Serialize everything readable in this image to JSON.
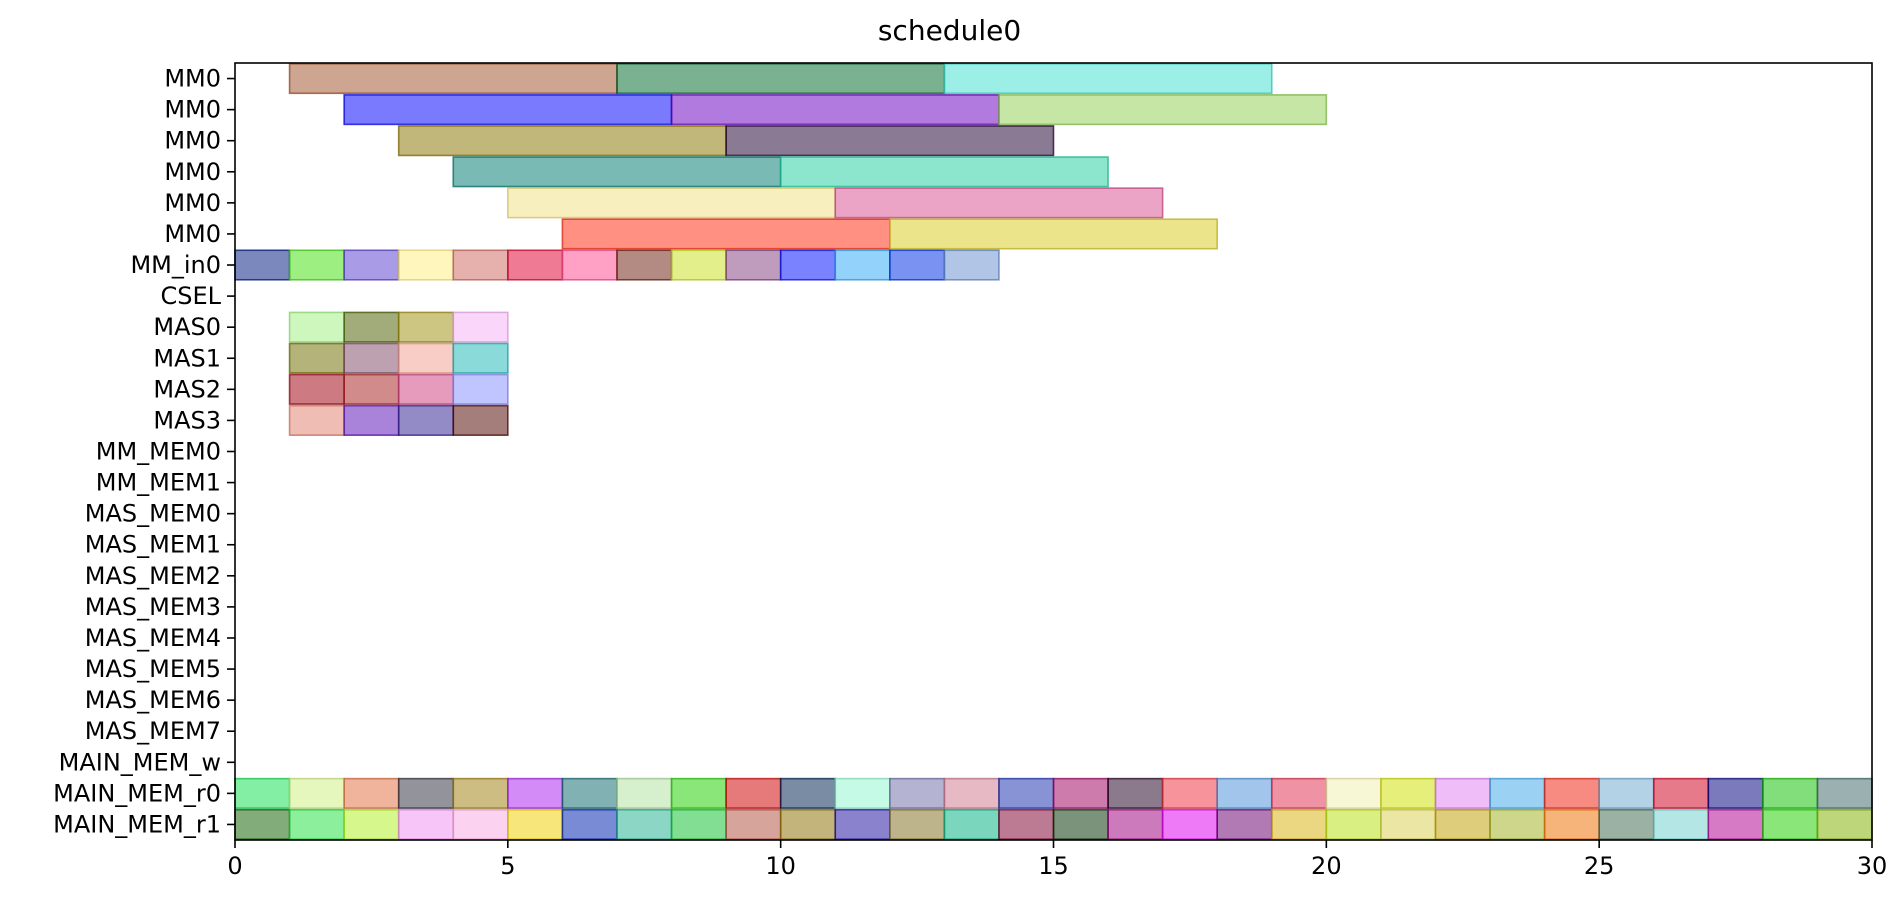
{
  "chart_data": {
    "type": "gantt",
    "title": "schedule0",
    "xlabel": "",
    "ylabel": "",
    "xlim": [
      0,
      30
    ],
    "x_ticks": [
      0,
      5,
      10,
      15,
      20,
      25,
      30
    ],
    "grid": false,
    "rows": [
      "MM0",
      "MM0",
      "MM0",
      "MM0",
      "MM0",
      "MM0",
      "MM_in0",
      "CSEL",
      "MAS0",
      "MAS1",
      "MAS2",
      "MAS3",
      "MM_MEM0",
      "MM_MEM1",
      "MAS_MEM0",
      "MAS_MEM1",
      "MAS_MEM2",
      "MAS_MEM3",
      "MAS_MEM4",
      "MAS_MEM5",
      "MAS_MEM6",
      "MAS_MEM7",
      "MAIN_MEM_w",
      "MAIN_MEM_r0",
      "MAIN_MEM_r1"
    ],
    "bars": [
      {
        "row": 0,
        "start": 1,
        "end": 7,
        "color": "#a0522d"
      },
      {
        "row": 0,
        "start": 7,
        "end": 13,
        "color": "#006a2a"
      },
      {
        "row": 0,
        "start": 13,
        "end": 19,
        "color": "#40e0d0"
      },
      {
        "row": 1,
        "start": 2,
        "end": 8,
        "color": "#0000ff"
      },
      {
        "row": 1,
        "start": 8,
        "end": 14,
        "color": "#6a00c0"
      },
      {
        "row": 1,
        "start": 14,
        "end": 20,
        "color": "#90d050"
      },
      {
        "row": 2,
        "start": 3,
        "end": 9,
        "color": "#8b7500"
      },
      {
        "row": 2,
        "start": 9,
        "end": 15,
        "color": "#200030"
      },
      {
        "row": 3,
        "start": 4,
        "end": 10,
        "color": "#007a70"
      },
      {
        "row": 3,
        "start": 10,
        "end": 16,
        "color": "#20d0a0"
      },
      {
        "row": 4,
        "start": 5,
        "end": 11,
        "color": "#f0e080"
      },
      {
        "row": 4,
        "start": 11,
        "end": 17,
        "color": "#d85090"
      },
      {
        "row": 5,
        "start": 6,
        "end": 12,
        "color": "#ff2a10"
      },
      {
        "row": 5,
        "start": 12,
        "end": 18,
        "color": "#d8cc20"
      },
      {
        "row": 6,
        "start": 0,
        "end": 1,
        "color": "#001a80"
      },
      {
        "row": 6,
        "start": 1,
        "end": 2,
        "color": "#44e010"
      },
      {
        "row": 6,
        "start": 2,
        "end": 3,
        "color": "#5a40d0"
      },
      {
        "row": 6,
        "start": 3,
        "end": 4,
        "color": "#ffee80"
      },
      {
        "row": 6,
        "start": 4,
        "end": 5,
        "color": "#d06a60"
      },
      {
        "row": 6,
        "start": 5,
        "end": 6,
        "color": "#e00030"
      },
      {
        "row": 6,
        "start": 6,
        "end": 7,
        "color": "#ff4a90"
      },
      {
        "row": 6,
        "start": 7,
        "end": 8,
        "color": "#702010"
      },
      {
        "row": 6,
        "start": 8,
        "end": 9,
        "color": "#c8e020"
      },
      {
        "row": 6,
        "start": 9,
        "end": 10,
        "color": "#844080"
      },
      {
        "row": 6,
        "start": 10,
        "end": 11,
        "color": "#0010ff"
      },
      {
        "row": 6,
        "start": 11,
        "end": 12,
        "color": "#30a8f8"
      },
      {
        "row": 6,
        "start": 12,
        "end": 13,
        "color": "#0030e8"
      },
      {
        "row": 6,
        "start": 13,
        "end": 14,
        "color": "#6a90d0"
      },
      {
        "row": 8,
        "start": 1,
        "end": 2,
        "color": "#a0f080"
      },
      {
        "row": 8,
        "start": 2,
        "end": 3,
        "color": "#4a6000"
      },
      {
        "row": 8,
        "start": 3,
        "end": 4,
        "color": "#a09010"
      },
      {
        "row": 8,
        "start": 4,
        "end": 5,
        "color": "#f8b0f8"
      },
      {
        "row": 9,
        "start": 1,
        "end": 2,
        "color": "#707000"
      },
      {
        "row": 9,
        "start": 2,
        "end": 3,
        "color": "#804a6a"
      },
      {
        "row": 9,
        "start": 3,
        "end": 4,
        "color": "#f0a090"
      },
      {
        "row": 9,
        "start": 4,
        "end": 5,
        "color": "#20b8b8"
      },
      {
        "row": 10,
        "start": 1,
        "end": 2,
        "color": "#a00010"
      },
      {
        "row": 10,
        "start": 2,
        "end": 3,
        "color": "#a82020"
      },
      {
        "row": 10,
        "start": 3,
        "end": 4,
        "color": "#d04080"
      },
      {
        "row": 10,
        "start": 4,
        "end": 5,
        "color": "#8890ff"
      },
      {
        "row": 11,
        "start": 1,
        "end": 2,
        "color": "#e08070"
      },
      {
        "row": 11,
        "start": 2,
        "end": 3,
        "color": "#5a10b8"
      },
      {
        "row": 11,
        "start": 3,
        "end": 4,
        "color": "#302090"
      },
      {
        "row": 11,
        "start": 4,
        "end": 5,
        "color": "#500800"
      },
      {
        "row": 23,
        "start": 0,
        "end": 1,
        "color": "#10e050"
      },
      {
        "row": 23,
        "start": 1,
        "end": 2,
        "color": "#d0f080"
      },
      {
        "row": 23,
        "start": 2,
        "end": 3,
        "color": "#e07040"
      },
      {
        "row": 23,
        "start": 3,
        "end": 4,
        "color": "#303040"
      },
      {
        "row": 23,
        "start": 4,
        "end": 5,
        "color": "#a08010"
      },
      {
        "row": 23,
        "start": 5,
        "end": 6,
        "color": "#a820f0"
      },
      {
        "row": 23,
        "start": 6,
        "end": 7,
        "color": "#106a70"
      },
      {
        "row": 23,
        "start": 7,
        "end": 8,
        "color": "#b0e0a0"
      },
      {
        "row": 23,
        "start": 8,
        "end": 9,
        "color": "#20d000"
      },
      {
        "row": 23,
        "start": 9,
        "end": 10,
        "color": "#d00000"
      },
      {
        "row": 23,
        "start": 10,
        "end": 11,
        "color": "#002050"
      },
      {
        "row": 23,
        "start": 11,
        "end": 12,
        "color": "#90f8d0"
      },
      {
        "row": 23,
        "start": 12,
        "end": 13,
        "color": "#7070a8"
      },
      {
        "row": 23,
        "start": 13,
        "end": 14,
        "color": "#d07890"
      },
      {
        "row": 23,
        "start": 14,
        "end": 15,
        "color": "#1a30b0"
      },
      {
        "row": 23,
        "start": 15,
        "end": 16,
        "color": "#a00060"
      },
      {
        "row": 23,
        "start": 16,
        "end": 17,
        "color": "#200020"
      },
      {
        "row": 23,
        "start": 17,
        "end": 18,
        "color": "#f03040"
      },
      {
        "row": 23,
        "start": 18,
        "end": 19,
        "color": "#4a90d8"
      },
      {
        "row": 23,
        "start": 19,
        "end": 20,
        "color": "#e03050"
      },
      {
        "row": 23,
        "start": 20,
        "end": 21,
        "color": "#f0f0b0"
      },
      {
        "row": 23,
        "start": 21,
        "end": 22,
        "color": "#d0e000"
      },
      {
        "row": 23,
        "start": 22,
        "end": 23,
        "color": "#e080f0"
      },
      {
        "row": 23,
        "start": 23,
        "end": 24,
        "color": "#40a8e8"
      },
      {
        "row": 23,
        "start": 24,
        "end": 25,
        "color": "#f02010"
      },
      {
        "row": 23,
        "start": 25,
        "end": 26,
        "color": "#70a8d0"
      },
      {
        "row": 23,
        "start": 26,
        "end": 27,
        "color": "#d00020"
      },
      {
        "row": 23,
        "start": 27,
        "end": 28,
        "color": "#000080"
      },
      {
        "row": 23,
        "start": 28,
        "end": 29,
        "color": "#10c000"
      },
      {
        "row": 23,
        "start": 29,
        "end": 30,
        "color": "#406a6a"
      },
      {
        "row": 24,
        "start": 0,
        "end": 1,
        "color": "#106000"
      },
      {
        "row": 24,
        "start": 1,
        "end": 2,
        "color": "#20e040"
      },
      {
        "row": 24,
        "start": 2,
        "end": 3,
        "color": "#b0f020"
      },
      {
        "row": 24,
        "start": 3,
        "end": 4,
        "color": "#f090f0"
      },
      {
        "row": 24,
        "start": 4,
        "end": 5,
        "color": "#f8a8e0"
      },
      {
        "row": 24,
        "start": 5,
        "end": 6,
        "color": "#f0d000"
      },
      {
        "row": 24,
        "start": 6,
        "end": 7,
        "color": "#0020b0"
      },
      {
        "row": 24,
        "start": 7,
        "end": 8,
        "color": "#20b090"
      },
      {
        "row": 24,
        "start": 8,
        "end": 9,
        "color": "#10c030"
      },
      {
        "row": 24,
        "start": 9,
        "end": 10,
        "color": "#b05040"
      },
      {
        "row": 24,
        "start": 10,
        "end": 11,
        "color": "#8a7000"
      },
      {
        "row": 24,
        "start": 11,
        "end": 12,
        "color": "#2010a0"
      },
      {
        "row": 24,
        "start": 12,
        "end": 13,
        "color": "#807020"
      },
      {
        "row": 24,
        "start": 13,
        "end": 14,
        "color": "#00b080"
      },
      {
        "row": 24,
        "start": 14,
        "end": 15,
        "color": "#800030"
      },
      {
        "row": 24,
        "start": 15,
        "end": 16,
        "color": "#003000"
      },
      {
        "row": 24,
        "start": 16,
        "end": 17,
        "color": "#a00080"
      },
      {
        "row": 24,
        "start": 17,
        "end": 18,
        "color": "#e000f0"
      },
      {
        "row": 24,
        "start": 18,
        "end": 19,
        "color": "#6a0070"
      },
      {
        "row": 24,
        "start": 19,
        "end": 20,
        "color": "#d8b010"
      },
      {
        "row": 24,
        "start": 20,
        "end": 21,
        "color": "#b8e010"
      },
      {
        "row": 24,
        "start": 21,
        "end": 22,
        "color": "#d8d050"
      },
      {
        "row": 24,
        "start": 22,
        "end": 23,
        "color": "#c0a000"
      },
      {
        "row": 24,
        "start": 23,
        "end": 24,
        "color": "#a0b020"
      },
      {
        "row": 24,
        "start": 24,
        "end": 25,
        "color": "#f07000"
      },
      {
        "row": 24,
        "start": 25,
        "end": 26,
        "color": "#406a50"
      },
      {
        "row": 24,
        "start": 26,
        "end": 27,
        "color": "#70d0d0"
      },
      {
        "row": 24,
        "start": 27,
        "end": 28,
        "color": "#b00090"
      },
      {
        "row": 24,
        "start": 28,
        "end": 29,
        "color": "#20d000"
      },
      {
        "row": 24,
        "start": 29,
        "end": 30,
        "color": "#80b000"
      }
    ]
  }
}
